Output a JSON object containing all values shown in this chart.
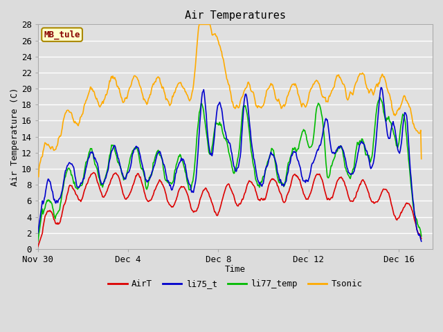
{
  "title": "Air Temperatures",
  "xlabel": "Time",
  "ylabel": "Air Temperature (C)",
  "ylim": [
    0,
    28
  ],
  "yticks": [
    0,
    2,
    4,
    6,
    8,
    10,
    12,
    14,
    16,
    18,
    20,
    22,
    24,
    26,
    28
  ],
  "bg_color": "#dcdcdc",
  "plot_bg_color": "#e0e0e0",
  "grid_color": "#ffffff",
  "annotation_text": "MB_tule",
  "annotation_bg": "#ffffcc",
  "annotation_border": "#aa8800",
  "annotation_text_color": "#880000",
  "colors": {
    "AirT": "#dd0000",
    "li75_t": "#0000cc",
    "li77_temp": "#00bb00",
    "Tsonic": "#ffaa00"
  },
  "lw": 1.2,
  "xtick_labels": [
    "Nov 30",
    "Dec 4",
    "Dec 8",
    "Dec 12",
    "Dec 16"
  ],
  "xtick_pos": [
    0,
    4,
    8,
    12,
    16
  ],
  "xlim": [
    0,
    17.5
  ]
}
